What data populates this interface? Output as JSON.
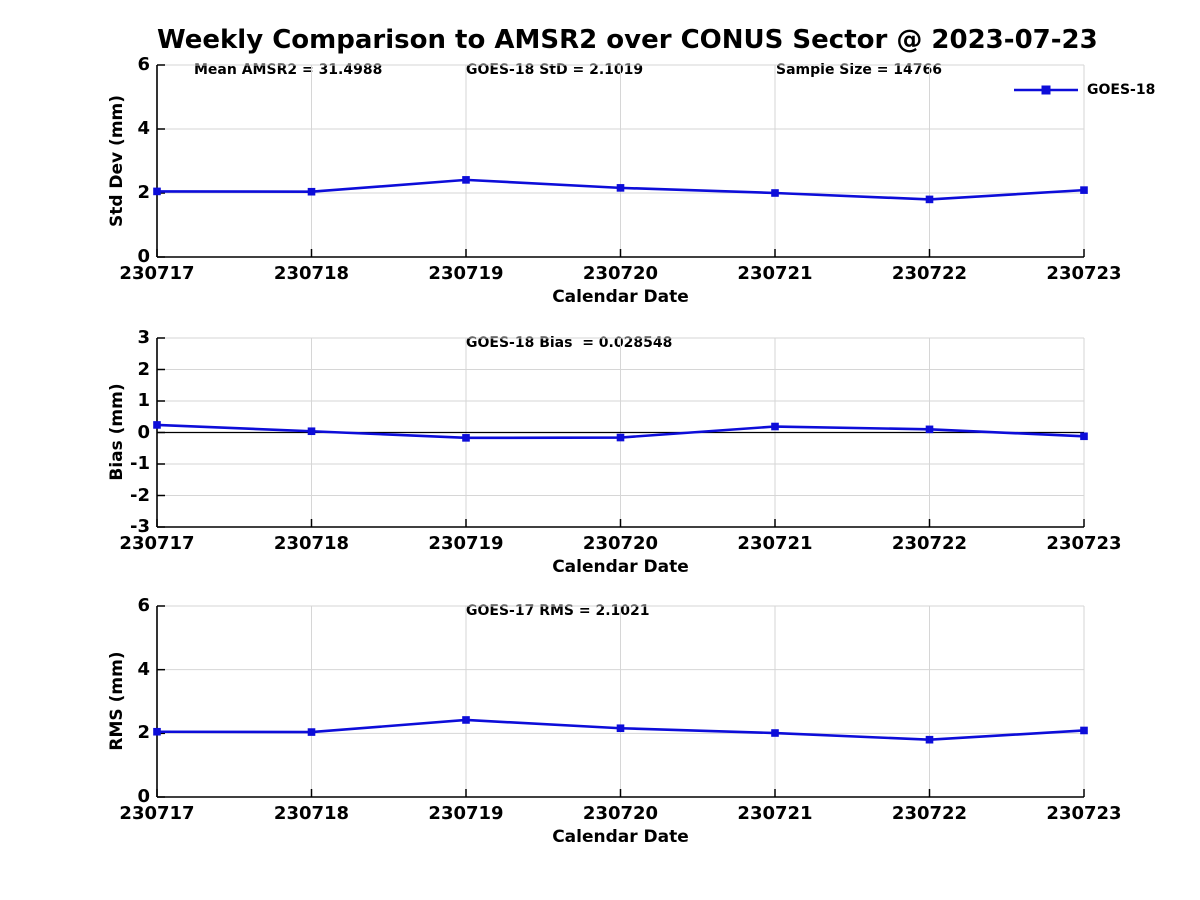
{
  "title": "Weekly Comparison to AMSR2 over CONUS Sector @ 2023-07-23",
  "legend": {
    "label": "GOES-18"
  },
  "colors": {
    "line": "#0d0dd9",
    "marker": "#0d0dd9",
    "grid": "#d6d6d6",
    "axis": "#000000",
    "zero_line": "#000000",
    "text": "#000000",
    "background": "#ffffff"
  },
  "chart_data": [
    {
      "type": "line",
      "name": "std_dev",
      "ylabel": "Std Dev (mm)",
      "xlabel": "Calendar Date",
      "annotations": [
        {
          "text": "Mean AMSR2 = 31.4988",
          "xfrac": 0.04
        },
        {
          "text": "GOES-18 StD = 2.1019",
          "xfrac": 0.333
        },
        {
          "text": "Sample Size = 14766",
          "xfrac": 0.667
        }
      ],
      "categories": [
        "230717",
        "230718",
        "230719",
        "230720",
        "230721",
        "230722",
        "230723"
      ],
      "series": [
        {
          "name": "GOES-18",
          "values": [
            2.05,
            2.04,
            2.41,
            2.16,
            2.0,
            1.8,
            2.09
          ]
        }
      ],
      "ylim": [
        0,
        6
      ],
      "yticks": [
        0,
        2,
        4,
        6
      ],
      "grid": true,
      "zero_line": false,
      "legend_position": "top-right"
    },
    {
      "type": "line",
      "name": "bias",
      "ylabel": "Bias (mm)",
      "xlabel": "Calendar Date",
      "annotations": [
        {
          "text": "GOES-18 Bias  = 0.028548",
          "xfrac": 0.333
        }
      ],
      "categories": [
        "230717",
        "230718",
        "230719",
        "230720",
        "230721",
        "230722",
        "230723"
      ],
      "series": [
        {
          "name": "GOES-18",
          "values": [
            0.24,
            0.04,
            -0.17,
            -0.16,
            0.19,
            0.1,
            -0.12
          ]
        }
      ],
      "ylim": [
        -3,
        3
      ],
      "yticks": [
        -3,
        -2,
        -1,
        0,
        1,
        2,
        3
      ],
      "grid": true,
      "zero_line": true,
      "legend_position": "none"
    },
    {
      "type": "line",
      "name": "rms",
      "ylabel": "RMS (mm)",
      "xlabel": "Calendar Date",
      "annotations": [
        {
          "text": "GOES-17 RMS = 2.1021",
          "xfrac": 0.333
        }
      ],
      "categories": [
        "230717",
        "230718",
        "230719",
        "230720",
        "230721",
        "230722",
        "230723"
      ],
      "series": [
        {
          "name": "GOES-18",
          "values": [
            2.05,
            2.04,
            2.42,
            2.16,
            2.01,
            1.8,
            2.09
          ]
        }
      ],
      "ylim": [
        0,
        6
      ],
      "yticks": [
        0,
        2,
        4,
        6
      ],
      "grid": true,
      "zero_line": false,
      "legend_position": "none"
    }
  ]
}
